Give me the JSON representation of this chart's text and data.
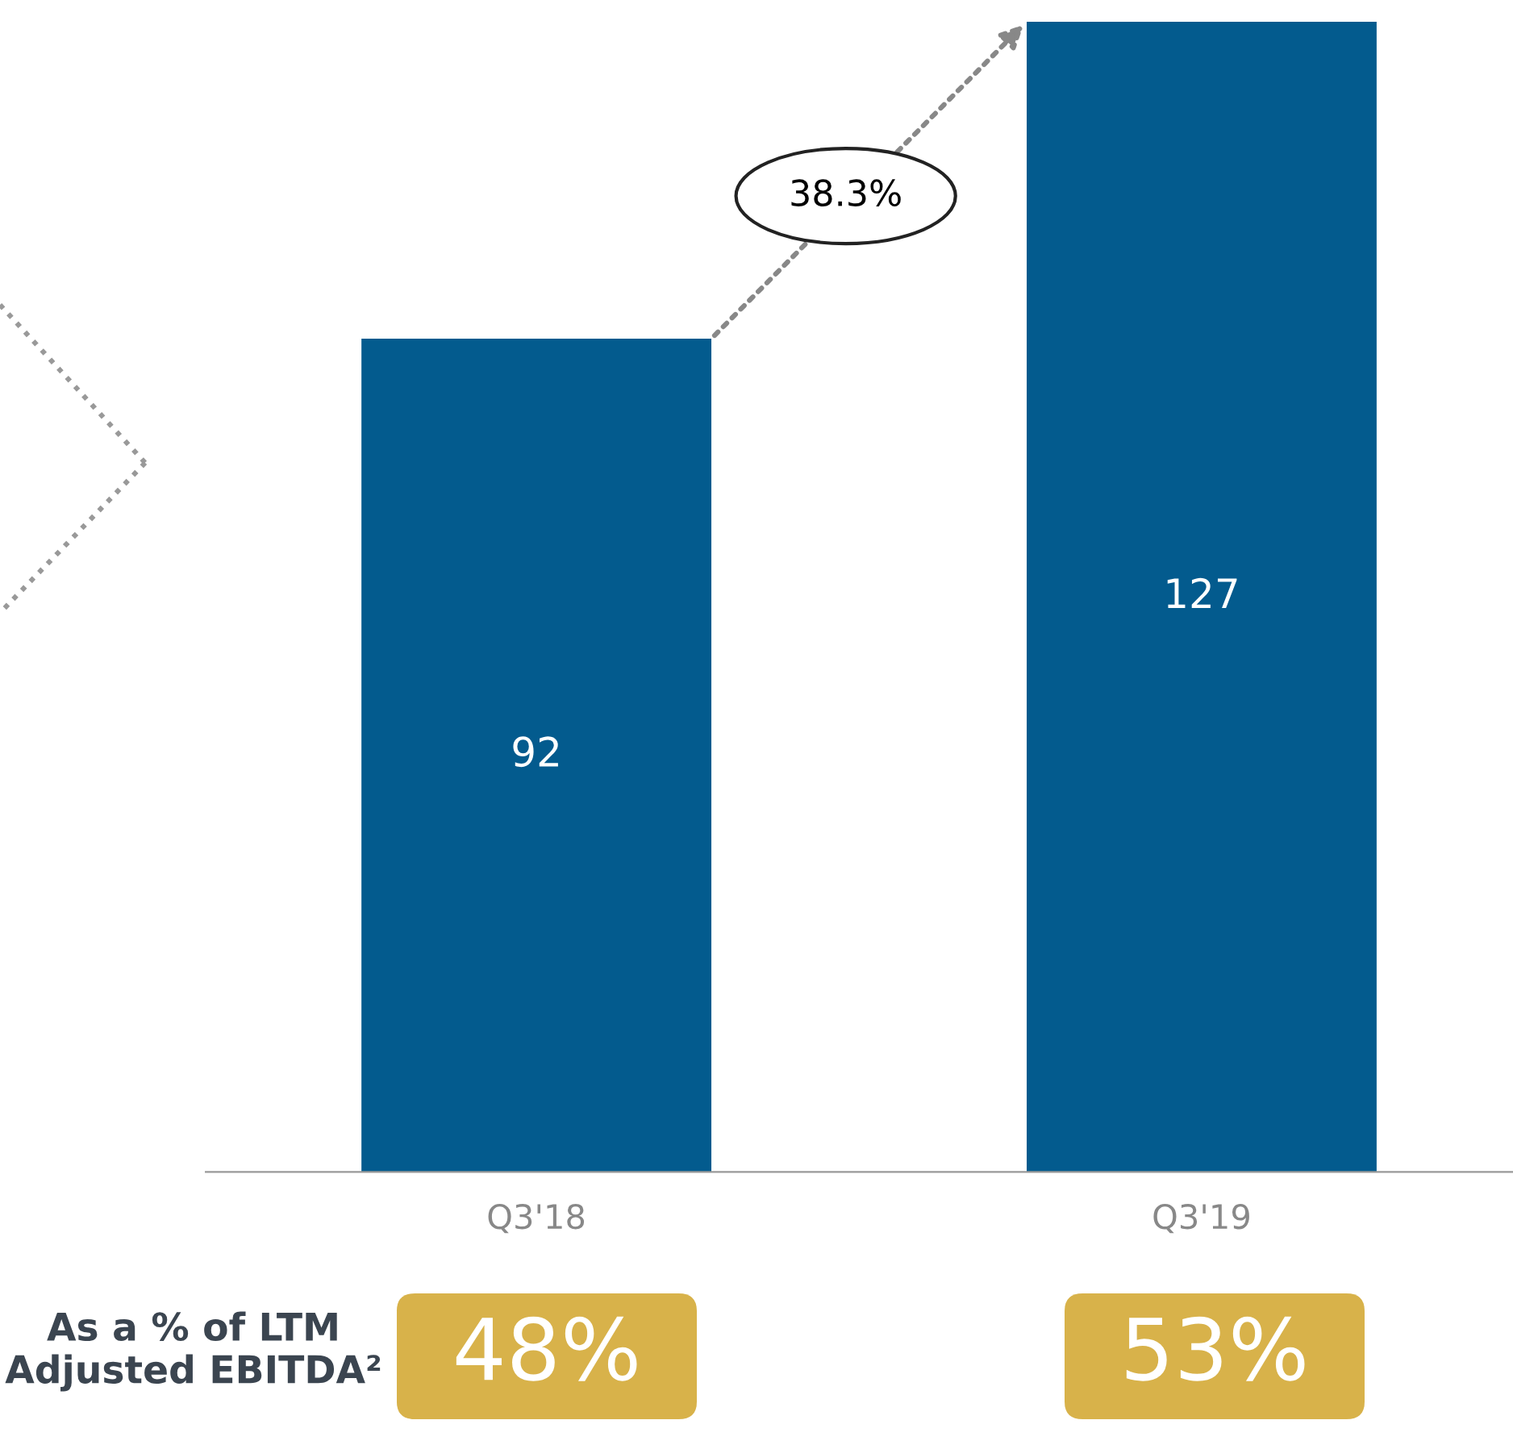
{
  "chart_data": {
    "type": "bar",
    "categories": [
      "Q3'18",
      "Q3'19"
    ],
    "values": [
      92,
      127
    ],
    "color": "#035b8e",
    "data_labels": true,
    "annotations": [
      "38.3%",
      "As a % of LTM Adjusted EBITDA²",
      "48%",
      "53%"
    ]
  }
}
